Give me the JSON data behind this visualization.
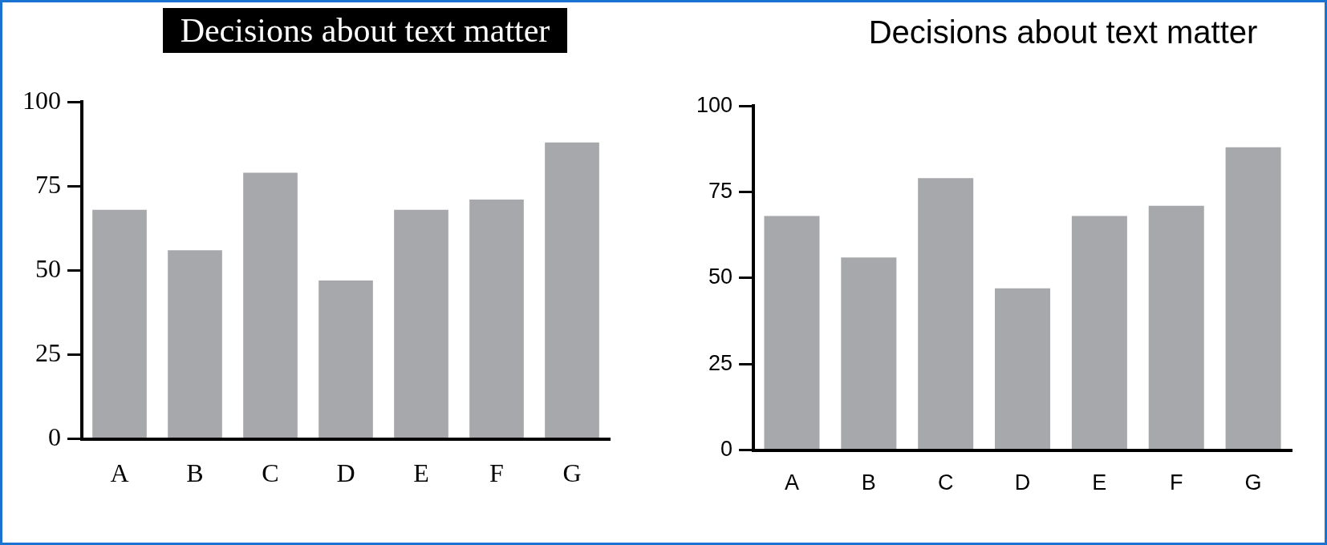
{
  "chart_data": [
    {
      "type": "bar",
      "title": "Decisions about text matter",
      "categories": [
        "A",
        "B",
        "C",
        "D",
        "E",
        "F",
        "G"
      ],
      "values": [
        68,
        56,
        79,
        47,
        68,
        71,
        88
      ],
      "color": "#a6a8ab",
      "ylim": [
        0,
        100
      ],
      "yticks": [
        0,
        25,
        50,
        75,
        100
      ]
    },
    {
      "type": "bar",
      "title": "Decisions about text matter",
      "categories": [
        "A",
        "B",
        "C",
        "D",
        "E",
        "F",
        "G"
      ],
      "values": [
        68,
        56,
        79,
        47,
        68,
        71,
        88
      ],
      "color": "#a6a8ab",
      "ylim": [
        0,
        100
      ],
      "yticks": [
        0,
        25,
        50,
        75,
        100
      ]
    }
  ]
}
